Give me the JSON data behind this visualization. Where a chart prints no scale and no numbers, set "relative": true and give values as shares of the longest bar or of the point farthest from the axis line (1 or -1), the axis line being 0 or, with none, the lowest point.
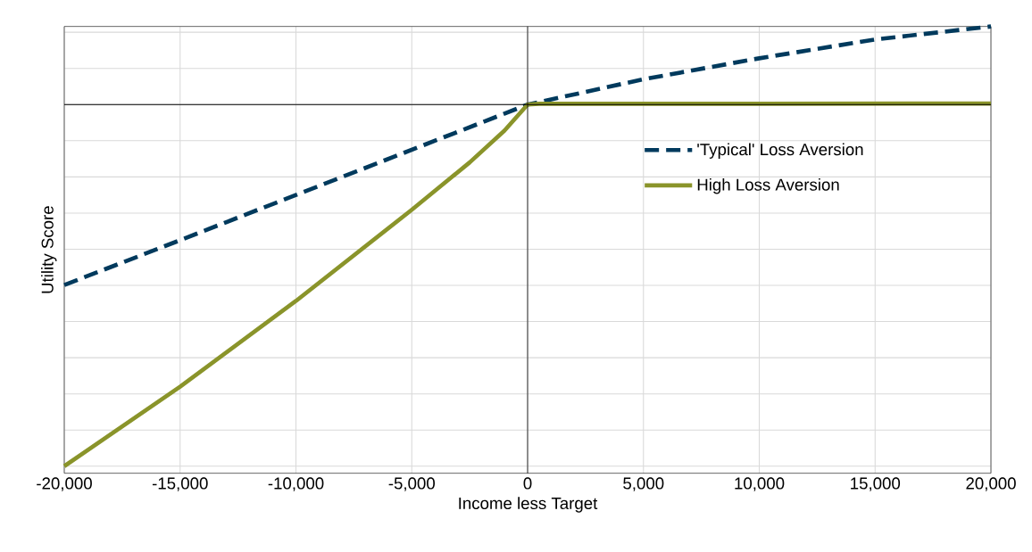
{
  "chart_data": {
    "type": "line",
    "relative": true,
    "xlabel": "Income less Target",
    "ylabel": "Utility Score",
    "xlim": [
      -20000,
      20000
    ],
    "xticks": [
      {
        "value": -20000,
        "label": "-20,000"
      },
      {
        "value": -15000,
        "label": "-15,000"
      },
      {
        "value": -10000,
        "label": "-10,000"
      },
      {
        "value": -5000,
        "label": "-5,000"
      },
      0,
      {
        "value": 5000,
        "label": "5,000"
      },
      {
        "value": 10000,
        "label": "10,000"
      },
      {
        "value": 15000,
        "label": "15,000"
      },
      {
        "value": 20000,
        "label": "20,000"
      }
    ],
    "grid": true,
    "legend": "right",
    "marker": "none",
    "series": [
      {
        "name": "'Typical' Loss Aversion",
        "color": "#003a5d",
        "line_style": "dashed",
        "x": [
          -20000,
          -15000,
          -10000,
          -5000,
          0,
          5000,
          10000,
          15000,
          20000
        ],
        "values": [
          -0.499,
          -0.375,
          -0.25,
          -0.125,
          0,
          0.07,
          0.128,
          0.18,
          0.216
        ]
      },
      {
        "name": "High Loss Aversion",
        "color": "#8a942a",
        "line_style": "solid",
        "x": [
          -20000,
          -15000,
          -10000,
          -5000,
          -2500,
          -1000,
          0,
          500,
          10000,
          20000
        ],
        "values": [
          -1,
          -0.78,
          -0.543,
          -0.291,
          -0.16,
          -0.072,
          0,
          0.002,
          0.002,
          0.003
        ]
      }
    ]
  }
}
